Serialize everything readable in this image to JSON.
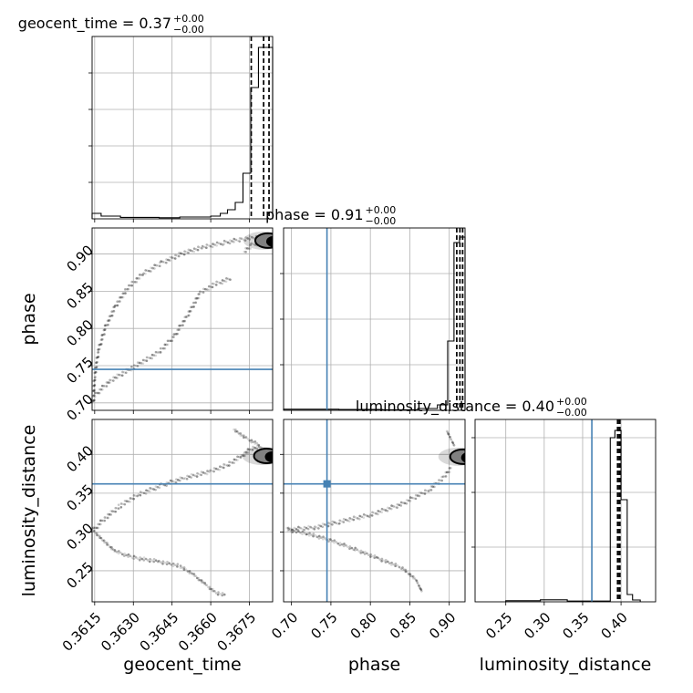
{
  "chart_data": {
    "type": "corner",
    "parameters": [
      "geocent_time",
      "phase",
      "luminosity_distance"
    ],
    "injection": {
      "color": "#4682b4",
      "phase": 0.745,
      "luminosity_distance": 0.362
    },
    "panels": [
      {
        "kind": "hist",
        "param": "geocent_time",
        "title": {
          "name": "geocent_time",
          "value": "0.37",
          "upper": "+0.00",
          "lower": "−0.00"
        },
        "xlim": [
          0.3614,
          0.3684
        ],
        "ylim": [
          0,
          1.0
        ],
        "xticks": [
          0.3615,
          0.363,
          0.3645,
          0.366,
          0.3675
        ],
        "bins": [
          [
            0.3614,
            0.36175,
            0.03
          ],
          [
            0.36175,
            0.3625,
            0.015
          ],
          [
            0.3625,
            0.364,
            0.008
          ],
          [
            0.364,
            0.3648,
            0.006
          ],
          [
            0.3648,
            0.366,
            0.01
          ],
          [
            0.366,
            0.36637,
            0.015
          ],
          [
            0.36637,
            0.36665,
            0.03
          ],
          [
            0.36665,
            0.36695,
            0.05
          ],
          [
            0.36695,
            0.36725,
            0.09
          ],
          [
            0.36725,
            0.36755,
            0.25
          ],
          [
            0.36755,
            0.36785,
            0.72
          ],
          [
            0.36785,
            0.3681,
            0.94
          ],
          [
            0.3681,
            0.3684,
            0.94
          ]
        ],
        "quantiles": [
          0.36757,
          0.36805,
          0.36826
        ]
      },
      {
        "kind": "hist",
        "param": "phase",
        "title": {
          "name": "phase",
          "value": "0.91",
          "upper": "+0.00",
          "lower": "−0.00"
        },
        "xlim": [
          0.69,
          0.92
        ],
        "ylim": [
          0,
          1.0
        ],
        "xticks": [
          0.7,
          0.75,
          0.8,
          0.85,
          0.9
        ],
        "bins": [
          [
            0.69,
            0.76,
            0.006
          ],
          [
            0.76,
            0.815,
            0.005
          ],
          [
            0.815,
            0.86,
            0.003
          ],
          [
            0.86,
            0.885,
            0.01
          ],
          [
            0.885,
            0.898,
            0.03
          ],
          [
            0.898,
            0.906,
            0.38
          ],
          [
            0.906,
            0.913,
            0.92
          ],
          [
            0.913,
            0.92,
            0.95
          ]
        ],
        "quantiles": [
          0.9095,
          0.9135,
          0.917
        ]
      },
      {
        "kind": "hist",
        "param": "luminosity_distance",
        "title": {
          "name": "luminosity_distance",
          "value": "0.40",
          "upper": "+0.00",
          "lower": "−0.00"
        },
        "xlim": [
          0.21,
          0.445
        ],
        "ylim": [
          0,
          1.0
        ],
        "xticks": [
          0.25,
          0.3,
          0.35,
          0.4
        ],
        "bins": [
          [
            0.25,
            0.295,
            0.006
          ],
          [
            0.295,
            0.33,
            0.011
          ],
          [
            0.33,
            0.36,
            0.004
          ],
          [
            0.36,
            0.386,
            0.004
          ],
          [
            0.386,
            0.392,
            0.9
          ],
          [
            0.392,
            0.4,
            0.94
          ],
          [
            0.4,
            0.408,
            0.56
          ],
          [
            0.408,
            0.415,
            0.04
          ],
          [
            0.415,
            0.425,
            0.01
          ]
        ],
        "quantiles": [
          0.3955,
          0.3975,
          0.3985
        ]
      },
      {
        "kind": "scatter2d",
        "x": "geocent_time",
        "y": "phase",
        "xlim": [
          0.3614,
          0.3684
        ],
        "ylim": [
          0.69,
          0.935
        ],
        "xticks": [
          0.3615,
          0.363,
          0.3645,
          0.366,
          0.3675
        ],
        "yticks": [
          0.7,
          0.75,
          0.8,
          0.85,
          0.9
        ],
        "tracks": [
          [
            [
              0.36145,
              0.7
            ],
            [
              0.3615,
              0.735
            ],
            [
              0.36165,
              0.77
            ],
            [
              0.3619,
              0.8
            ],
            [
              0.3623,
              0.83
            ],
            [
              0.3628,
              0.855
            ],
            [
              0.3634,
              0.874
            ],
            [
              0.3641,
              0.888
            ],
            [
              0.3649,
              0.901
            ],
            [
              0.3657,
              0.909
            ],
            [
              0.3665,
              0.915
            ],
            [
              0.3672,
              0.92
            ],
            [
              0.3679,
              0.923
            ]
          ],
          [
            [
              0.3615,
              0.71
            ],
            [
              0.3621,
              0.73
            ],
            [
              0.363,
              0.748
            ],
            [
              0.364,
              0.768
            ],
            [
              0.3646,
              0.79
            ],
            [
              0.3651,
              0.818
            ],
            [
              0.3656,
              0.848
            ],
            [
              0.3662,
              0.86
            ],
            [
              0.3668,
              0.867
            ]
          ],
          [
            [
              0.3673,
              0.903
            ],
            [
              0.3676,
              0.912
            ],
            [
              0.368,
              0.916
            ]
          ]
        ],
        "blobs": [
          [
            0.36815,
            0.918
          ]
        ]
      },
      {
        "kind": "scatter2d",
        "x": "geocent_time",
        "y": "luminosity_distance",
        "xlim": [
          0.3614,
          0.3684
        ],
        "ylim": [
          0.21,
          0.445
        ],
        "xticks": [
          0.3615,
          0.363,
          0.3645,
          0.366,
          0.3675
        ],
        "yticks": [
          0.25,
          0.3,
          0.35,
          0.4
        ],
        "tracks": [
          [
            [
              0.36145,
              0.302
            ],
            [
              0.3618,
              0.29
            ],
            [
              0.3623,
              0.275
            ],
            [
              0.363,
              0.267
            ],
            [
              0.364,
              0.262
            ],
            [
              0.3648,
              0.256
            ],
            [
              0.3653,
              0.246
            ],
            [
              0.3658,
              0.232
            ],
            [
              0.3662,
              0.222
            ],
            [
              0.3666,
              0.218
            ]
          ],
          [
            [
              0.36145,
              0.302
            ],
            [
              0.3619,
              0.318
            ],
            [
              0.3625,
              0.334
            ],
            [
              0.3632,
              0.348
            ],
            [
              0.3641,
              0.36
            ],
            [
              0.365,
              0.37
            ],
            [
              0.366,
              0.378
            ],
            [
              0.3667,
              0.387
            ],
            [
              0.3672,
              0.398
            ],
            [
              0.3676,
              0.408
            ],
            [
              0.368,
              0.41
            ]
          ],
          [
            [
              0.3669,
              0.432
            ],
            [
              0.3674,
              0.42
            ],
            [
              0.3679,
              0.412
            ]
          ]
        ],
        "blobs": [
          [
            0.3681,
            0.398
          ]
        ]
      },
      {
        "kind": "scatter2d",
        "x": "phase",
        "y": "luminosity_distance",
        "xlim": [
          0.69,
          0.92
        ],
        "ylim": [
          0.21,
          0.445
        ],
        "xticks": [
          0.7,
          0.75,
          0.8,
          0.85,
          0.9
        ],
        "yticks": [],
        "tracks": [
          [
            [
              0.695,
              0.303
            ],
            [
              0.72,
              0.298
            ],
            [
              0.75,
              0.289
            ],
            [
              0.78,
              0.278
            ],
            [
              0.81,
              0.266
            ],
            [
              0.84,
              0.254
            ],
            [
              0.858,
              0.238
            ],
            [
              0.866,
              0.222
            ]
          ],
          [
            [
              0.695,
              0.303
            ],
            [
              0.73,
              0.306
            ],
            [
              0.76,
              0.313
            ],
            [
              0.8,
              0.322
            ],
            [
              0.84,
              0.336
            ],
            [
              0.875,
              0.355
            ],
            [
              0.893,
              0.37
            ],
            [
              0.903,
              0.384
            ]
          ],
          [
            [
              0.897,
              0.43
            ],
            [
              0.902,
              0.42
            ],
            [
              0.907,
              0.41
            ]
          ]
        ],
        "blobs": [
          [
            0.915,
            0.397
          ]
        ]
      }
    ],
    "xlabels": [
      "geocent_time",
      "phase",
      "luminosity_distance"
    ],
    "ylabels": [
      "phase",
      "luminosity_distance"
    ]
  }
}
